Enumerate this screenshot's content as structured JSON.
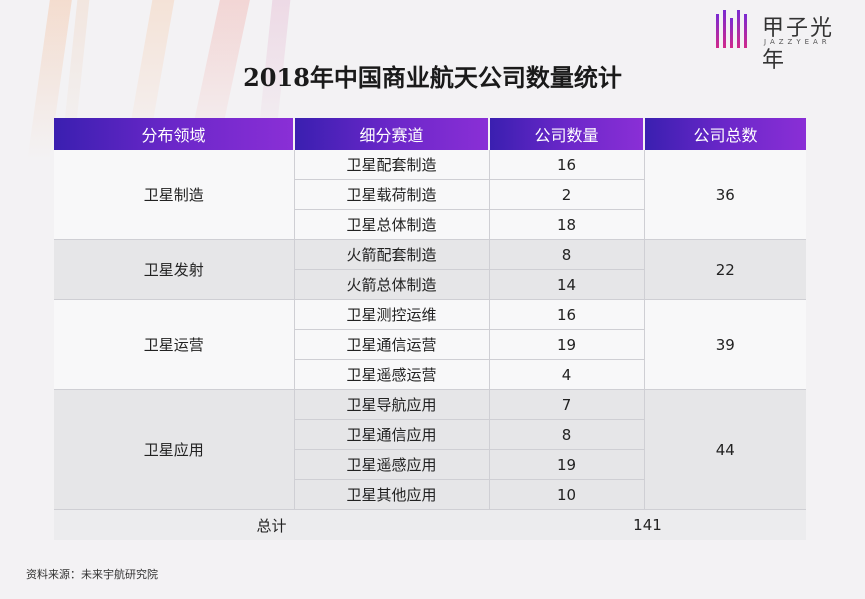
{
  "logo": {
    "text": "甲子光年",
    "sub": "JAZZYEAR"
  },
  "title": "2018年中国商业航天公司数量统计",
  "headers": [
    "分布领域",
    "细分赛道",
    "公司数量",
    "公司总数"
  ],
  "groups": [
    {
      "name": "卫星制造",
      "total": "36",
      "rows": [
        {
          "track": "卫星配套制造",
          "count": "16"
        },
        {
          "track": "卫星载荷制造",
          "count": "2"
        },
        {
          "track": "卫星总体制造",
          "count": "18"
        }
      ]
    },
    {
      "name": "卫星发射",
      "total": "22",
      "rows": [
        {
          "track": "火箭配套制造",
          "count": "8"
        },
        {
          "track": "火箭总体制造",
          "count": "14"
        }
      ]
    },
    {
      "name": "卫星运营",
      "total": "39",
      "rows": [
        {
          "track": "卫星测控运维",
          "count": "16"
        },
        {
          "track": "卫星通信运营",
          "count": "19"
        },
        {
          "track": "卫星遥感运营",
          "count": "4"
        }
      ]
    },
    {
      "name": "卫星应用",
      "total": "44",
      "rows": [
        {
          "track": "卫星导航应用",
          "count": "7"
        },
        {
          "track": "卫星通信应用",
          "count": "8"
        },
        {
          "track": "卫星遥感应用",
          "count": "19"
        },
        {
          "track": "卫星其他应用",
          "count": "10"
        }
      ]
    }
  ],
  "total": {
    "label": "总计",
    "value": "141"
  },
  "source": "资料来源：未来宇航研究院"
}
